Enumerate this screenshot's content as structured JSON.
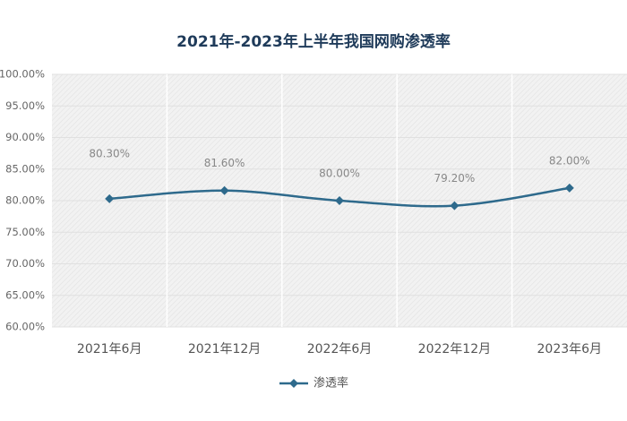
{
  "chart_data": {
    "type": "line",
    "title": "2021年-2023年上半年我国网购渗透率",
    "categories": [
      "2021年6月",
      "2021年12月",
      "2022年6月",
      "2022年12月",
      "2023年6月"
    ],
    "series": [
      {
        "name": "渗透率",
        "color": "#2e6a8c",
        "values": [
          80.3,
          81.6,
          80.0,
          79.2,
          82.0
        ],
        "value_labels": [
          "80.30%",
          "81.60%",
          "80.00%",
          "79.20%",
          "82.00%"
        ]
      }
    ],
    "ylim": [
      60,
      100
    ],
    "yticks": [
      {
        "value": 60,
        "label": "60.00%"
      },
      {
        "value": 65,
        "label": "65.00%"
      },
      {
        "value": 70,
        "label": "70.00%"
      },
      {
        "value": 75,
        "label": "75.00%"
      },
      {
        "value": 80,
        "label": "80.00%"
      },
      {
        "value": 85,
        "label": "85.00%"
      },
      {
        "value": 90,
        "label": "90.00%"
      },
      {
        "value": 95,
        "label": "95.00%"
      },
      {
        "value": 100,
        "label": "100.00%"
      }
    ],
    "grid": true,
    "legend": "bottom"
  }
}
